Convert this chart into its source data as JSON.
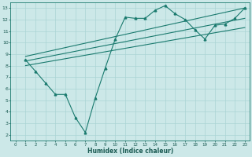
{
  "xlabel": "Humidex (Indice chaleur)",
  "xlim": [
    -0.5,
    23.5
  ],
  "ylim": [
    1.5,
    13.5
  ],
  "xticks": [
    0,
    1,
    2,
    3,
    4,
    5,
    6,
    7,
    8,
    9,
    10,
    11,
    12,
    13,
    14,
    15,
    16,
    17,
    18,
    19,
    20,
    21,
    22,
    23
  ],
  "yticks": [
    2,
    3,
    4,
    5,
    6,
    7,
    8,
    9,
    10,
    11,
    12,
    13
  ],
  "bg_color": "#cce8e8",
  "grid_color": "#aad4d4",
  "line_color": "#1a7a6e",
  "main_x": [
    1,
    2,
    3,
    4,
    5,
    6,
    7,
    8,
    9,
    10,
    11,
    12,
    13,
    14,
    15,
    16,
    17,
    18,
    19,
    20,
    21,
    22,
    23
  ],
  "main_y": [
    8.5,
    7.5,
    6.5,
    5.5,
    5.5,
    3.5,
    2.2,
    5.2,
    7.8,
    10.3,
    12.2,
    12.1,
    12.1,
    12.8,
    13.2,
    12.5,
    12.0,
    11.1,
    10.3,
    11.5,
    11.6,
    12.1,
    13.0
  ],
  "line1_x": [
    1,
    23
  ],
  "line1_y": [
    8.8,
    13.0
  ],
  "line2_x": [
    1,
    23
  ],
  "line2_y": [
    8.0,
    11.3
  ],
  "line3_x": [
    1,
    23
  ],
  "line3_y": [
    8.4,
    12.1
  ]
}
